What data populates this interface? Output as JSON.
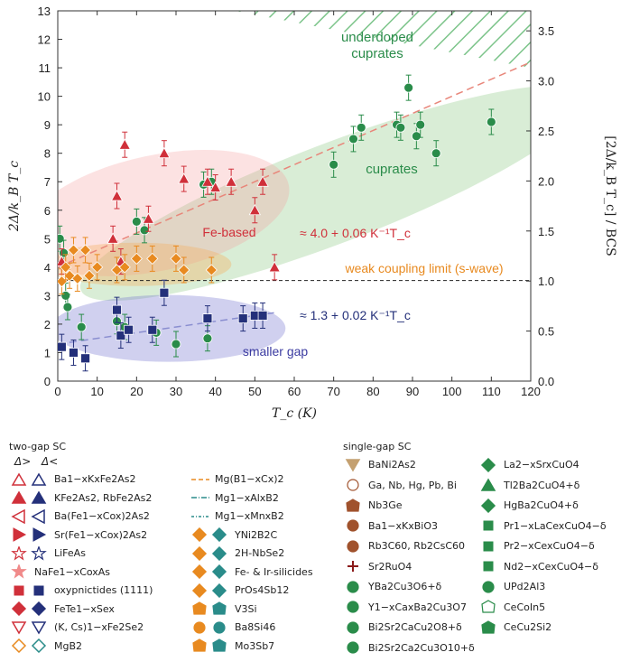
{
  "chart_data": {
    "type": "scatter",
    "xlabel": "T_c (K)",
    "ylabel": "2Δ/k_B T_c",
    "y2label": "[2Δ/k_B T_c] / BCS",
    "xlim": [
      0,
      120
    ],
    "ylim": [
      0,
      13
    ],
    "y2lim": [
      0,
      3.7
    ],
    "xticks": [
      0,
      10,
      20,
      30,
      40,
      50,
      60,
      70,
      80,
      90,
      100,
      110,
      120
    ],
    "yticks": [
      0,
      1,
      2,
      3,
      4,
      5,
      6,
      7,
      8,
      9,
      10,
      11,
      12,
      13
    ],
    "y2ticks": [
      "0.0",
      "0.5",
      "1.0",
      "1.5",
      "2.0",
      "2.5",
      "3.0",
      "3.5"
    ],
    "weak_coupling_limit": 3.53,
    "annotations": {
      "underdoped": "underdoped\ncuprates",
      "cuprates": "cuprates",
      "fe_based": "Fe-based",
      "weak_coupling": "weak coupling limit (s-wave)",
      "smaller_gap": "smaller gap",
      "fit_upper": "≈ 4.0 + 0.06 K⁻¹T_c",
      "fit_lower": "≈ 1.3 + 0.02 K⁻¹T_c"
    },
    "fits": [
      {
        "label": "upper",
        "intercept": 4.0,
        "slope": 0.06,
        "color": "#e8867a"
      },
      {
        "label": "lower",
        "intercept": 1.3,
        "slope": 0.02,
        "color": "#8a8ed0"
      }
    ],
    "series": [
      {
        "name": "cuprates",
        "color": "#2a8c4a",
        "points": [
          [
            70,
            7.6
          ],
          [
            75,
            8.5
          ],
          [
            77,
            8.9
          ],
          [
            86,
            9.0
          ],
          [
            87,
            8.9
          ],
          [
            89,
            10.3
          ],
          [
            91,
            8.6
          ],
          [
            92,
            9.0
          ],
          [
            96,
            8.0
          ],
          [
            110,
            9.1
          ],
          [
            39,
            7.0
          ],
          [
            37,
            6.9
          ],
          [
            20,
            5.6
          ],
          [
            22,
            5.3
          ],
          [
            0.5,
            5.0
          ],
          [
            1.5,
            4.5
          ],
          [
            2,
            3.0
          ],
          [
            2.5,
            2.6
          ],
          [
            6,
            1.9
          ],
          [
            15,
            2.1
          ],
          [
            17,
            1.9
          ],
          [
            25,
            1.7
          ],
          [
            38,
            1.5
          ],
          [
            30,
            1.3
          ]
        ]
      },
      {
        "name": "Fe-based",
        "color": "#d0303a",
        "points": [
          [
            15,
            6.5
          ],
          [
            17,
            8.3
          ],
          [
            27,
            8.0
          ],
          [
            32,
            7.1
          ],
          [
            38,
            7.0
          ],
          [
            40,
            6.8
          ],
          [
            50,
            6.0
          ],
          [
            52,
            7.0
          ],
          [
            44,
            7.0
          ],
          [
            14,
            5.0
          ],
          [
            16,
            4.2
          ],
          [
            23,
            5.7
          ],
          [
            1,
            4.2
          ],
          [
            55,
            4.0
          ]
        ]
      },
      {
        "name": "two-gap small",
        "color": "#24307a",
        "points": [
          [
            4,
            1.0
          ],
          [
            1,
            1.2
          ],
          [
            7,
            0.8
          ],
          [
            15,
            2.5
          ],
          [
            16,
            1.6
          ],
          [
            18,
            1.8
          ],
          [
            24,
            1.8
          ],
          [
            27,
            3.1
          ],
          [
            38,
            2.2
          ],
          [
            50,
            2.3
          ],
          [
            52,
            2.3
          ],
          [
            47,
            2.2
          ]
        ]
      },
      {
        "name": "weak-coupling compounds",
        "color": "#e88a20",
        "points": [
          [
            1,
            3.5
          ],
          [
            3,
            3.7
          ],
          [
            5,
            3.6
          ],
          [
            8,
            3.7
          ],
          [
            10,
            4.0
          ],
          [
            15,
            3.9
          ],
          [
            17,
            4.0
          ],
          [
            20,
            4.3
          ],
          [
            24,
            4.3
          ],
          [
            30,
            4.3
          ],
          [
            32,
            3.9
          ],
          [
            39,
            3.9
          ],
          [
            2,
            4.0
          ],
          [
            7,
            4.6
          ],
          [
            4,
            4.6
          ]
        ]
      }
    ]
  },
  "legend": {
    "two_gap_title": "two-gap SC",
    "single_gap_title": "single-gap SC",
    "delta_large": "Δ>",
    "delta_small": "Δ<",
    "col1": [
      {
        "label": "Ba1−xKxFe2As2",
        "icon": "triangle-up-outlined",
        "c1": "#d0303a",
        "c2": "#24307a"
      },
      {
        "label": "KFe2As2, RbFe2As2",
        "icon": "triangle-up-filled",
        "c1": "#d0303a",
        "c2": "#24307a"
      },
      {
        "label": "Ba(Fe1−xCox)2As2",
        "icon": "triangle-left-outlined",
        "c1": "#d0303a",
        "c2": "#24307a"
      },
      {
        "label": "Sr(Fe1−xCox)2As2",
        "icon": "triangle-right-filled",
        "c1": "#d0303a",
        "c2": "#24307a"
      },
      {
        "label": "LiFeAs",
        "icon": "star-outlined",
        "c1": "#d0303a",
        "c2": "#24307a"
      },
      {
        "label": "NaFe1−xCoxAs",
        "icon": "star-light",
        "c1": "#f08a8a",
        "c2": ""
      },
      {
        "label": "oxypnictides (1111)",
        "icon": "square-filled",
        "c1": "#d0303a",
        "c2": "#24307a"
      },
      {
        "label": "FeTe1−xSex",
        "icon": "diamond-filled",
        "c1": "#d0303a",
        "c2": "#24307a"
      },
      {
        "label": "(K, Cs)1−xFe2Se2",
        "icon": "triangle-down-outlined",
        "c1": "#d0303a",
        "c2": "#24307a"
      },
      {
        "label": "MgB2",
        "icon": "diamond-outlined",
        "c1": "#e88a20",
        "c2": "#2a8c8a"
      }
    ],
    "col2": [
      {
        "label": "Mg(B1−xCx)2",
        "icon": "line-dashed",
        "c1": "#e88a20",
        "c2": ""
      },
      {
        "label": "Mg1−xAlxB2",
        "icon": "line-dashdot",
        "c1": "#2a8c8a",
        "c2": ""
      },
      {
        "label": "Mg1−xMnxB2",
        "icon": "line-dashdot2",
        "c1": "#2a8c8a",
        "c2": ""
      },
      {
        "label": "YNi2B2C",
        "icon": "diamond-half",
        "c1": "#e88a20",
        "c2": "#2a8c8a"
      },
      {
        "label": "2H-NbSe2",
        "icon": "diamond-half2",
        "c1": "#e88a20",
        "c2": "#2a8c8a"
      },
      {
        "label": "Fe- & Ir-silicides",
        "icon": "diamond-half3",
        "c1": "#e88a20",
        "c2": "#2a8c8a"
      },
      {
        "label": "PrOs4Sb12",
        "icon": "diamond-filled",
        "c1": "#e88a20",
        "c2": "#2a8c8a"
      },
      {
        "label": "V3Si",
        "icon": "hexagon-half",
        "c1": "#e88a20",
        "c2": "#2a8c8a"
      },
      {
        "label": "Ba8Si46",
        "icon": "circle-half",
        "c1": "#e88a20",
        "c2": "#2a8c8a"
      },
      {
        "label": "Mo3Sb7",
        "icon": "hexagon-half2",
        "c1": "#e88a20",
        "c2": "#2a8c8a"
      }
    ],
    "col3": [
      {
        "label": "BaNi2As2",
        "icon": "triangle-down-filled",
        "c1": "#c4a070",
        "c2": ""
      },
      {
        "label": "Ga, Nb, Hg, Pb, Bi",
        "icon": "circle-dot",
        "c1": "#a0522d",
        "c2": ""
      },
      {
        "label": "Nb3Ge",
        "icon": "hexagon-filled",
        "c1": "#a0522d",
        "c2": ""
      },
      {
        "label": "Ba1−xKxBiO3",
        "icon": "circle-half",
        "c1": "#a0522d",
        "c2": ""
      },
      {
        "label": "Rb3C60, Rb2CsC60",
        "icon": "circle-flower",
        "c1": "#a0522d",
        "c2": ""
      },
      {
        "label": "Sr2RuO4",
        "icon": "plus",
        "c1": "#8b1a1a",
        "c2": ""
      },
      {
        "label": "YBa2Cu3O6+δ",
        "icon": "circle-half-bottom",
        "c1": "#2a8c4a",
        "c2": ""
      },
      {
        "label": "Y1−xCaxBa2Cu3O7",
        "icon": "circle-half-top",
        "c1": "#2a8c4a",
        "c2": ""
      },
      {
        "label": "Bi2Sr2CaCu2O8+δ",
        "icon": "circle-half-left",
        "c1": "#2a8c4a",
        "c2": ""
      },
      {
        "label": "Bi2Sr2Ca2Cu3O10+δ",
        "icon": "circle-half-right",
        "c1": "#2a8c4a",
        "c2": ""
      }
    ],
    "col4": [
      {
        "label": "La2−xSrxCuO4",
        "icon": "diamond-half-top",
        "c1": "#2a8c4a",
        "c2": ""
      },
      {
        "label": "Tl2Ba2CuO4+δ",
        "icon": "triangle-up-half",
        "c1": "#2a8c4a",
        "c2": ""
      },
      {
        "label": "HgBa2CuO4+δ",
        "icon": "diamond-half-left",
        "c1": "#2a8c4a",
        "c2": ""
      },
      {
        "label": "Pr1−xLaCexCuO4−δ",
        "icon": "square-half",
        "c1": "#2a8c4a",
        "c2": ""
      },
      {
        "label": "Pr2−xCexCuO4−δ",
        "icon": "square-half2",
        "c1": "#2a8c4a",
        "c2": ""
      },
      {
        "label": "Nd2−xCexCuO4−δ",
        "icon": "square-half3",
        "c1": "#2a8c4a",
        "c2": ""
      },
      {
        "label": "UPd2Al3",
        "icon": "circle-half-top",
        "c1": "#2a8c4a",
        "c2": ""
      },
      {
        "label": "CeCoIn5",
        "icon": "pentagon-outline",
        "c1": "#2a8c4a",
        "c2": ""
      },
      {
        "label": "CeCu2Si2",
        "icon": "pentagon-half",
        "c1": "#2a8c4a",
        "c2": ""
      }
    ]
  }
}
